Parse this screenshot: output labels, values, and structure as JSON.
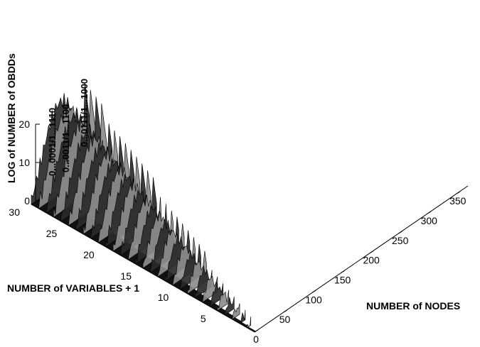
{
  "chart_data": {
    "type": "surface",
    "xlabel": "NUMBER of NODES",
    "ylabel": "NUMBER of VARIABLES + 1",
    "zlabel": "LOG of NUMBER of OBDDs",
    "x_ticks": [
      "0",
      "50",
      "100",
      "150",
      "200",
      "250",
      "300",
      "350"
    ],
    "y_ticks": [
      "5",
      "10",
      "15",
      "20",
      "25",
      "30"
    ],
    "z_ticks": [
      "0",
      "10",
      "20"
    ],
    "xlim": [
      0,
      370
    ],
    "ylim": [
      0,
      30
    ],
    "zlim": [
      0,
      20
    ],
    "annotations": [
      "0...0001/1...1110",
      "0...0011/1...1100",
      "0...0111/1...1000"
    ],
    "grid": false,
    "colormap": "grayscale"
  }
}
